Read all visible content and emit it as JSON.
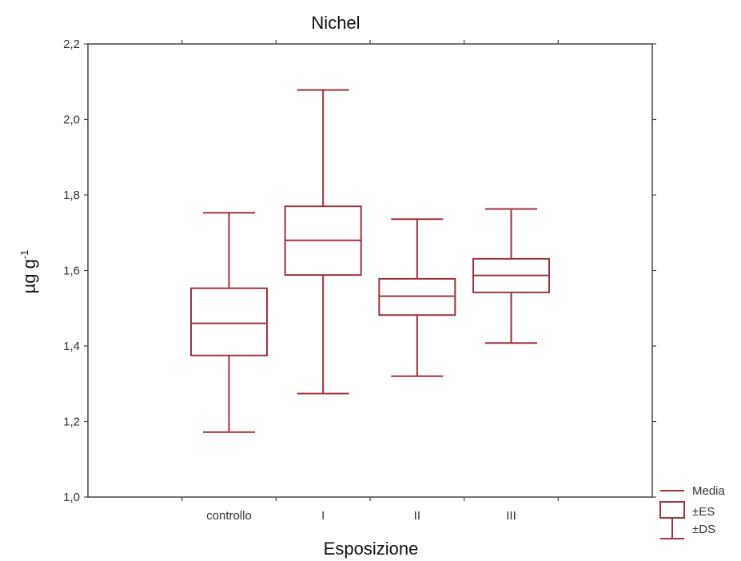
{
  "chart_data": {
    "type": "boxplot",
    "title": "Nichel",
    "xlabel": "Esposizione",
    "ylabel_main": "µg g",
    "ylabel_sup": "-1",
    "ylim": [
      1.0,
      2.2
    ],
    "yticks": [
      "1,0",
      "1,2",
      "1,4",
      "1,6",
      "1,8",
      "2,0",
      "2,2"
    ],
    "categories": [
      "controllo",
      "I",
      "II",
      "III"
    ],
    "series": [
      {
        "category": "controllo",
        "mean": 1.46,
        "se_low": 1.375,
        "se_high": 1.553,
        "sd_low": 1.172,
        "sd_high": 1.753
      },
      {
        "category": "I",
        "mean": 1.68,
        "se_low": 1.588,
        "se_high": 1.77,
        "sd_low": 1.274,
        "sd_high": 2.078
      },
      {
        "category": "II",
        "mean": 1.532,
        "se_low": 1.482,
        "se_high": 1.578,
        "sd_low": 1.32,
        "sd_high": 1.736
      },
      {
        "category": "III",
        "mean": 1.587,
        "se_low": 1.542,
        "se_high": 1.631,
        "sd_low": 1.408,
        "sd_high": 1.763
      }
    ],
    "legend": {
      "position": "bottom-right",
      "items": [
        "Media",
        "±ES",
        "±DS"
      ]
    },
    "color": "#a0323a"
  }
}
